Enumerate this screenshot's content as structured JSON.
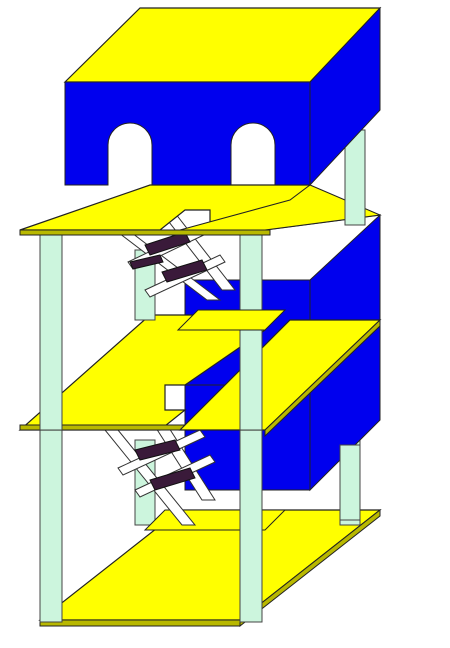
{
  "colors": {
    "platform_yellow": "#ffff00",
    "block_blue": "#0000ee",
    "pillar_green": "#ccf5dd",
    "stair_white": "#ffffff",
    "stair_tread": "#3a1a3a",
    "outline": "#222222"
  },
  "scene": {
    "levels": [
      "top-level",
      "middle-level",
      "bottom-level"
    ],
    "description_text": ""
  }
}
